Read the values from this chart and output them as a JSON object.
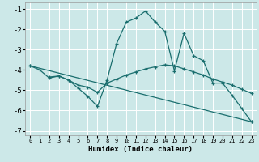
{
  "xlabel": "Humidex (Indice chaleur)",
  "bg_color": "#cce8e8",
  "grid_color": "#ffffff",
  "line_color": "#1a6e6e",
  "xlim": [
    -0.5,
    23.5
  ],
  "ylim": [
    -7.2,
    -0.7
  ],
  "yticks": [
    -7,
    -6,
    -5,
    -4,
    -3,
    -2,
    -1
  ],
  "xticks": [
    0,
    1,
    2,
    3,
    4,
    5,
    6,
    7,
    8,
    9,
    10,
    11,
    12,
    13,
    14,
    15,
    16,
    17,
    18,
    19,
    20,
    21,
    22,
    23
  ],
  "series1_x": [
    0,
    1,
    2,
    3,
    4,
    5,
    6,
    7,
    8,
    9,
    10,
    11,
    12,
    13,
    14,
    15,
    16,
    17,
    18,
    19,
    20,
    21,
    22,
    23
  ],
  "series1_y": [
    -3.8,
    -4.0,
    -4.4,
    -4.3,
    -4.5,
    -4.9,
    -5.3,
    -5.8,
    -4.5,
    -2.7,
    -1.65,
    -1.45,
    -1.1,
    -1.65,
    -2.1,
    -4.05,
    -2.2,
    -3.3,
    -3.55,
    -4.65,
    -4.65,
    -5.25,
    -5.9,
    -6.55
  ],
  "series2_x": [
    2,
    3,
    4,
    5,
    6,
    7,
    8,
    9,
    10,
    11,
    12,
    13,
    14,
    15,
    16,
    17,
    18,
    19,
    20,
    21,
    22,
    23
  ],
  "series2_y": [
    -4.35,
    -4.3,
    -4.5,
    -4.75,
    -4.85,
    -5.1,
    -4.65,
    -4.45,
    -4.25,
    -4.1,
    -3.95,
    -3.85,
    -3.75,
    -3.8,
    -3.95,
    -4.1,
    -4.25,
    -4.45,
    -4.6,
    -4.75,
    -4.95,
    -5.15
  ],
  "series3_x": [
    0,
    23
  ],
  "series3_y": [
    -3.8,
    -6.55
  ]
}
